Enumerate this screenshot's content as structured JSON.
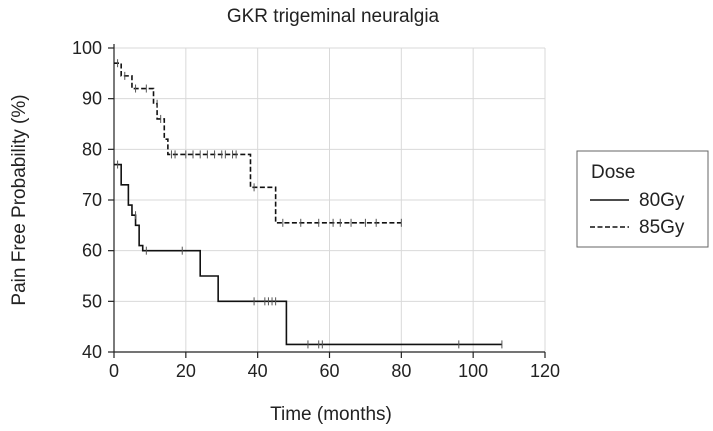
{
  "chart_data": {
    "type": "line",
    "subtype": "kaplan-meier-step",
    "title": "GKR trigeminal neuralgia",
    "xlabel": "Time (months)",
    "ylabel": "Pain Free Probability (%)",
    "xlim": [
      0,
      120
    ],
    "ylim": [
      40,
      100
    ],
    "xticks": [
      0,
      20,
      40,
      60,
      80,
      100,
      120
    ],
    "yticks": [
      40,
      50,
      60,
      70,
      80,
      90,
      100
    ],
    "grid": true,
    "legend": {
      "title": "Dose",
      "placement": "right"
    },
    "series": [
      {
        "name": "80Gy",
        "style": "solid",
        "steps": [
          [
            0,
            77
          ],
          [
            2,
            77
          ],
          [
            2,
            73
          ],
          [
            4,
            73
          ],
          [
            4,
            69
          ],
          [
            5,
            69
          ],
          [
            5,
            67
          ],
          [
            6,
            67
          ],
          [
            6,
            65
          ],
          [
            7,
            65
          ],
          [
            7,
            61
          ],
          [
            8,
            61
          ],
          [
            8,
            60
          ],
          [
            24,
            60
          ],
          [
            24,
            55
          ],
          [
            29,
            55
          ],
          [
            29,
            50
          ],
          [
            48,
            50
          ],
          [
            48,
            41.5
          ],
          [
            108,
            41.5
          ]
        ],
        "censored": [
          [
            1,
            77
          ],
          [
            6,
            67
          ],
          [
            9,
            60
          ],
          [
            19,
            60
          ],
          [
            39,
            50
          ],
          [
            42,
            50
          ],
          [
            43,
            50
          ],
          [
            44,
            50
          ],
          [
            45,
            50
          ],
          [
            54,
            41.5
          ],
          [
            57,
            41.5
          ],
          [
            58,
            41.5
          ],
          [
            96,
            41.5
          ],
          [
            108,
            41.5
          ]
        ]
      },
      {
        "name": "85Gy",
        "style": "dashed",
        "steps": [
          [
            0,
            97
          ],
          [
            2,
            97
          ],
          [
            2,
            94.5
          ],
          [
            5,
            94.5
          ],
          [
            5,
            92
          ],
          [
            11,
            92
          ],
          [
            11,
            89
          ],
          [
            12,
            89
          ],
          [
            12,
            86
          ],
          [
            14,
            86
          ],
          [
            14,
            82
          ],
          [
            15,
            82
          ],
          [
            15,
            79
          ],
          [
            38,
            79
          ],
          [
            38,
            72.5
          ],
          [
            45,
            72.5
          ],
          [
            45,
            65.5
          ],
          [
            80,
            65.5
          ]
        ],
        "censored": [
          [
            1,
            97
          ],
          [
            3,
            94.5
          ],
          [
            6,
            92
          ],
          [
            9,
            92
          ],
          [
            12,
            89
          ],
          [
            13,
            86
          ],
          [
            16,
            79
          ],
          [
            17,
            79
          ],
          [
            20,
            79
          ],
          [
            22,
            79
          ],
          [
            24,
            79
          ],
          [
            26,
            79
          ],
          [
            28,
            79
          ],
          [
            30,
            79
          ],
          [
            31,
            79
          ],
          [
            33,
            79
          ],
          [
            34,
            79
          ],
          [
            39,
            72.5
          ],
          [
            47,
            65.5
          ],
          [
            52,
            65.5
          ],
          [
            57,
            65.5
          ],
          [
            61,
            65.5
          ],
          [
            63,
            65.5
          ],
          [
            66,
            65.5
          ],
          [
            70,
            65.5
          ],
          [
            73,
            65.5
          ],
          [
            80,
            65.5
          ]
        ]
      }
    ]
  }
}
